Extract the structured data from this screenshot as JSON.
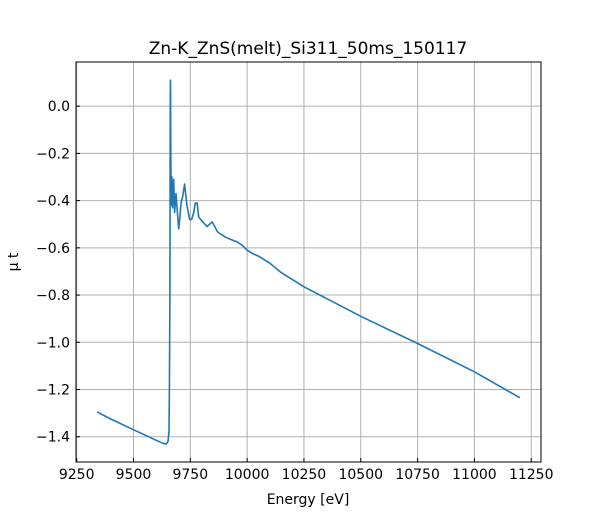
{
  "chart_data": {
    "type": "line",
    "title": "Zn-K_ZnS(melt)_Si311_50ms_150117",
    "xlabel": "Energy [eV]",
    "ylabel": "μ t",
    "xlim": [
      9247,
      11293
    ],
    "ylim": [
      -1.507,
      0.187
    ],
    "xticks": [
      9250,
      9500,
      9750,
      10000,
      10250,
      10500,
      10750,
      11000,
      11250
    ],
    "yticks": [
      0.0,
      -0.2,
      -0.4,
      -0.6,
      -0.8,
      -1.0,
      -1.2,
      -1.4
    ],
    "xtick_labels": [
      "9250",
      "9500",
      "9750",
      "10000",
      "10250",
      "10500",
      "10750",
      "11000",
      "11250"
    ],
    "ytick_labels": [
      "0.0",
      "−0.2",
      "−0.4",
      "−0.6",
      "−0.8",
      "−1.0",
      "−1.2",
      "−1.4"
    ],
    "grid": true,
    "color": "#1f77b4",
    "series": [
      {
        "name": "mu t",
        "x": [
          9340,
          9400,
          9500,
          9600,
          9630,
          9645,
          9652,
          9656,
          9658,
          9660,
          9661,
          9662,
          9663,
          9664,
          9666,
          9669,
          9672,
          9677,
          9681,
          9687,
          9693,
          9699,
          9704,
          9709,
          9717,
          9725,
          9735,
          9747,
          9756,
          9765,
          9772,
          9780,
          9787,
          9796,
          9804,
          9814,
          9824,
          9835,
          9846,
          9858,
          9868,
          9880,
          9890,
          9905,
          9930,
          9956,
          9980,
          10000,
          10025,
          10050,
          10100,
          10150,
          10250,
          10500,
          10750,
          11000,
          11200
        ],
        "y": [
          -1.295,
          -1.325,
          -1.37,
          -1.415,
          -1.428,
          -1.43,
          -1.42,
          -1.38,
          -1.2,
          -0.8,
          -0.3,
          0.05,
          0.11,
          -0.2,
          -0.42,
          -0.3,
          -0.43,
          -0.31,
          -0.45,
          -0.37,
          -0.45,
          -0.52,
          -0.47,
          -0.41,
          -0.38,
          -0.33,
          -0.42,
          -0.48,
          -0.48,
          -0.45,
          -0.41,
          -0.41,
          -0.47,
          -0.48,
          -0.49,
          -0.5,
          -0.51,
          -0.5,
          -0.49,
          -0.51,
          -0.53,
          -0.54,
          -0.545,
          -0.555,
          -0.565,
          -0.575,
          -0.59,
          -0.61,
          -0.625,
          -0.635,
          -0.665,
          -0.705,
          -0.765,
          -0.89,
          -1.005,
          -1.125,
          -1.235
        ]
      }
    ]
  }
}
